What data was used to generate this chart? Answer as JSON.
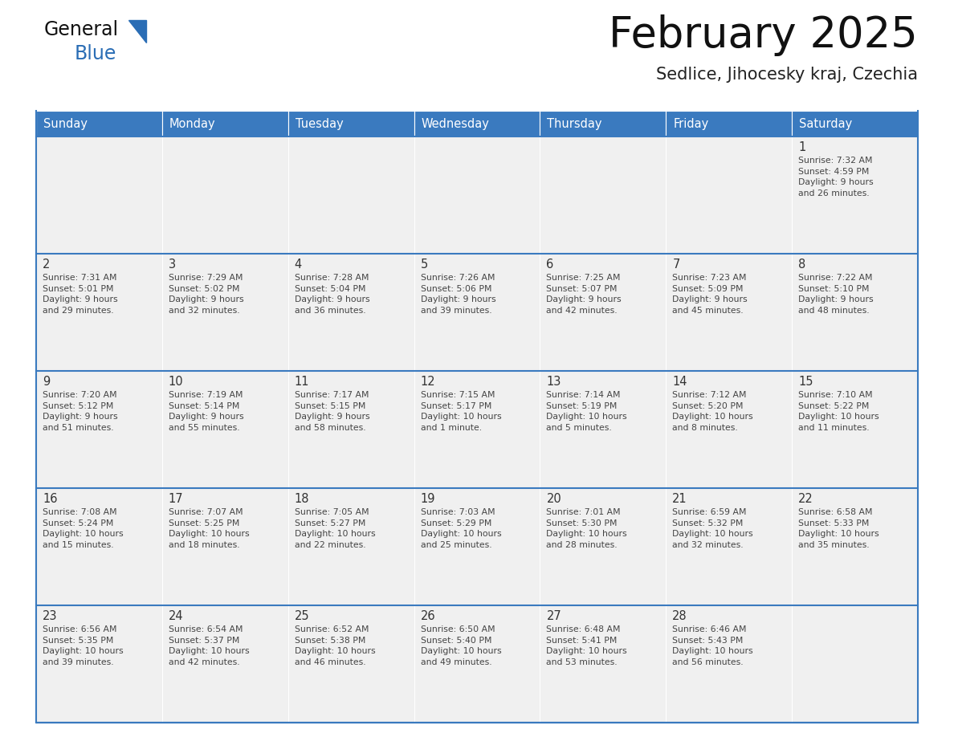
{
  "title": "February 2025",
  "subtitle": "Sedlice, Jihocesky kraj, Czechia",
  "header_color": "#3a7abf",
  "header_text_color": "#ffffff",
  "cell_bg_color": "#f0f0f0",
  "day_number_color": "#333333",
  "info_text_color": "#444444",
  "border_color": "#3a7abf",
  "row_line_color": "#3a7abf",
  "days_of_week": [
    "Sunday",
    "Monday",
    "Tuesday",
    "Wednesday",
    "Thursday",
    "Friday",
    "Saturday"
  ],
  "weeks": [
    [
      {
        "day": null,
        "info": null
      },
      {
        "day": null,
        "info": null
      },
      {
        "day": null,
        "info": null
      },
      {
        "day": null,
        "info": null
      },
      {
        "day": null,
        "info": null
      },
      {
        "day": null,
        "info": null
      },
      {
        "day": 1,
        "info": "Sunrise: 7:32 AM\nSunset: 4:59 PM\nDaylight: 9 hours\nand 26 minutes."
      }
    ],
    [
      {
        "day": 2,
        "info": "Sunrise: 7:31 AM\nSunset: 5:01 PM\nDaylight: 9 hours\nand 29 minutes."
      },
      {
        "day": 3,
        "info": "Sunrise: 7:29 AM\nSunset: 5:02 PM\nDaylight: 9 hours\nand 32 minutes."
      },
      {
        "day": 4,
        "info": "Sunrise: 7:28 AM\nSunset: 5:04 PM\nDaylight: 9 hours\nand 36 minutes."
      },
      {
        "day": 5,
        "info": "Sunrise: 7:26 AM\nSunset: 5:06 PM\nDaylight: 9 hours\nand 39 minutes."
      },
      {
        "day": 6,
        "info": "Sunrise: 7:25 AM\nSunset: 5:07 PM\nDaylight: 9 hours\nand 42 minutes."
      },
      {
        "day": 7,
        "info": "Sunrise: 7:23 AM\nSunset: 5:09 PM\nDaylight: 9 hours\nand 45 minutes."
      },
      {
        "day": 8,
        "info": "Sunrise: 7:22 AM\nSunset: 5:10 PM\nDaylight: 9 hours\nand 48 minutes."
      }
    ],
    [
      {
        "day": 9,
        "info": "Sunrise: 7:20 AM\nSunset: 5:12 PM\nDaylight: 9 hours\nand 51 minutes."
      },
      {
        "day": 10,
        "info": "Sunrise: 7:19 AM\nSunset: 5:14 PM\nDaylight: 9 hours\nand 55 minutes."
      },
      {
        "day": 11,
        "info": "Sunrise: 7:17 AM\nSunset: 5:15 PM\nDaylight: 9 hours\nand 58 minutes."
      },
      {
        "day": 12,
        "info": "Sunrise: 7:15 AM\nSunset: 5:17 PM\nDaylight: 10 hours\nand 1 minute."
      },
      {
        "day": 13,
        "info": "Sunrise: 7:14 AM\nSunset: 5:19 PM\nDaylight: 10 hours\nand 5 minutes."
      },
      {
        "day": 14,
        "info": "Sunrise: 7:12 AM\nSunset: 5:20 PM\nDaylight: 10 hours\nand 8 minutes."
      },
      {
        "day": 15,
        "info": "Sunrise: 7:10 AM\nSunset: 5:22 PM\nDaylight: 10 hours\nand 11 minutes."
      }
    ],
    [
      {
        "day": 16,
        "info": "Sunrise: 7:08 AM\nSunset: 5:24 PM\nDaylight: 10 hours\nand 15 minutes."
      },
      {
        "day": 17,
        "info": "Sunrise: 7:07 AM\nSunset: 5:25 PM\nDaylight: 10 hours\nand 18 minutes."
      },
      {
        "day": 18,
        "info": "Sunrise: 7:05 AM\nSunset: 5:27 PM\nDaylight: 10 hours\nand 22 minutes."
      },
      {
        "day": 19,
        "info": "Sunrise: 7:03 AM\nSunset: 5:29 PM\nDaylight: 10 hours\nand 25 minutes."
      },
      {
        "day": 20,
        "info": "Sunrise: 7:01 AM\nSunset: 5:30 PM\nDaylight: 10 hours\nand 28 minutes."
      },
      {
        "day": 21,
        "info": "Sunrise: 6:59 AM\nSunset: 5:32 PM\nDaylight: 10 hours\nand 32 minutes."
      },
      {
        "day": 22,
        "info": "Sunrise: 6:58 AM\nSunset: 5:33 PM\nDaylight: 10 hours\nand 35 minutes."
      }
    ],
    [
      {
        "day": 23,
        "info": "Sunrise: 6:56 AM\nSunset: 5:35 PM\nDaylight: 10 hours\nand 39 minutes."
      },
      {
        "day": 24,
        "info": "Sunrise: 6:54 AM\nSunset: 5:37 PM\nDaylight: 10 hours\nand 42 minutes."
      },
      {
        "day": 25,
        "info": "Sunrise: 6:52 AM\nSunset: 5:38 PM\nDaylight: 10 hours\nand 46 minutes."
      },
      {
        "day": 26,
        "info": "Sunrise: 6:50 AM\nSunset: 5:40 PM\nDaylight: 10 hours\nand 49 minutes."
      },
      {
        "day": 27,
        "info": "Sunrise: 6:48 AM\nSunset: 5:41 PM\nDaylight: 10 hours\nand 53 minutes."
      },
      {
        "day": 28,
        "info": "Sunrise: 6:46 AM\nSunset: 5:43 PM\nDaylight: 10 hours\nand 56 minutes."
      },
      {
        "day": null,
        "info": null
      }
    ]
  ],
  "logo_text_color": "#111111",
  "logo_blue_color": "#2a6db5",
  "figsize": [
    11.88,
    9.18
  ],
  "dpi": 100
}
